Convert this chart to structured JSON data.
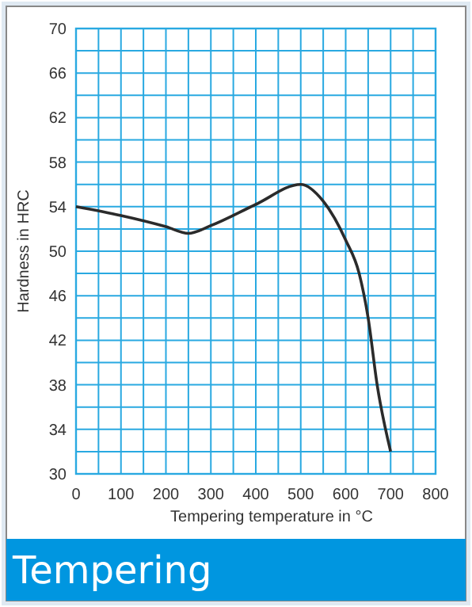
{
  "chart_data": {
    "type": "line",
    "title": "Tempering",
    "xlabel": "Tempering temperature in °C",
    "ylabel": "Hardness in HRC",
    "x": [
      0,
      100,
      200,
      250,
      300,
      400,
      500,
      550,
      600,
      630,
      650,
      670,
      700
    ],
    "series": [
      {
        "color": "#2b2b2b",
        "values": [
          54,
          53.2,
          52.2,
          51.6,
          52.3,
          54.2,
          56,
          54.5,
          51,
          48,
          44,
          38,
          32
        ]
      }
    ],
    "xlim": [
      0,
      800
    ],
    "xticks": [
      0,
      100,
      200,
      300,
      400,
      500,
      600,
      700,
      800
    ],
    "ylim": [
      30,
      70
    ],
    "yticks": [
      30,
      34,
      38,
      42,
      46,
      50,
      54,
      58,
      62,
      66,
      70
    ],
    "grid": true,
    "marker": "none",
    "line_style": "solid"
  }
}
